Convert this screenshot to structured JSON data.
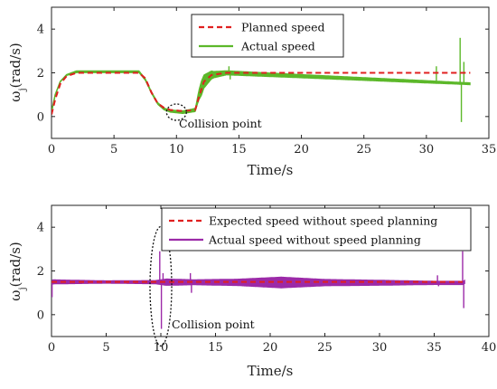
{
  "chart_data": [
    {
      "type": "line",
      "xlabel": "Time/s",
      "ylabel": "ω_j(rad/s)",
      "xlim": [
        0,
        35
      ],
      "ylim": [
        -1,
        5
      ],
      "xticks": [
        0,
        5,
        10,
        15,
        20,
        25,
        30,
        35
      ],
      "yticks": [
        0,
        2,
        4
      ],
      "legend_position": "top-center",
      "annotation": "Collision point",
      "annotation_at": [
        10,
        0.2
      ],
      "series": [
        {
          "name": "Planned speed",
          "style": "dashed",
          "color": "#e02020",
          "points": [
            [
              0,
              0.1
            ],
            [
              0.3,
              0.8
            ],
            [
              0.7,
              1.5
            ],
            [
              1.2,
              1.85
            ],
            [
              2,
              2
            ],
            [
              7,
              2
            ],
            [
              7.5,
              1.75
            ],
            [
              8,
              1.1
            ],
            [
              8.5,
              0.6
            ],
            [
              9,
              0.4
            ],
            [
              9.5,
              0.3
            ],
            [
              10.5,
              0.25
            ],
            [
              11.5,
              0.3
            ],
            [
              11.8,
              0.9
            ],
            [
              12.2,
              1.6
            ],
            [
              12.8,
              1.9
            ],
            [
              14,
              2
            ],
            [
              33.5,
              2
            ]
          ]
        },
        {
          "name": "Actual speed",
          "style": "solid",
          "color": "#5cb82a",
          "points": [
            [
              0,
              0.2
            ],
            [
              0.3,
              1.0
            ],
            [
              0.7,
              1.6
            ],
            [
              1.2,
              1.9
            ],
            [
              2,
              2.05
            ],
            [
              7,
              2.05
            ],
            [
              7.5,
              1.7
            ],
            [
              8,
              1.1
            ],
            [
              8.5,
              0.6
            ],
            [
              9,
              0.35
            ],
            [
              9.5,
              0.25
            ],
            [
              10.5,
              0.2
            ],
            [
              11.5,
              0.3
            ],
            [
              11.8,
              1.0
            ],
            [
              12.2,
              1.6
            ],
            [
              12.8,
              1.9
            ],
            [
              14,
              2
            ],
            [
              33.5,
              1.5
            ]
          ],
          "band": [
            [
              0,
              0.0
            ],
            [
              2,
              0.05
            ],
            [
              7,
              0.05
            ],
            [
              9,
              0.05
            ],
            [
              11.5,
              0.08
            ],
            [
              12,
              0.35
            ],
            [
              13,
              0.15
            ],
            [
              14,
              0.1
            ],
            [
              20,
              0.08
            ],
            [
              30,
              0.06
            ],
            [
              32.5,
              0.05
            ],
            [
              33,
              0.05
            ]
          ],
          "spikes": [
            [
              14.2,
              2.3
            ],
            [
              14.3,
              1.7
            ],
            [
              30.8,
              2.3
            ],
            [
              31,
              1.5
            ],
            [
              32.7,
              3.6
            ],
            [
              32.8,
              -0.25
            ],
            [
              33,
              2.5
            ],
            [
              33.2,
              1.5
            ]
          ]
        }
      ]
    },
    {
      "type": "line",
      "xlabel": "Time/s",
      "ylabel": "ω_j(rad/s)",
      "xlim": [
        0,
        40
      ],
      "ylim": [
        -1,
        5
      ],
      "xticks": [
        0,
        5,
        10,
        15,
        20,
        25,
        30,
        35,
        40
      ],
      "yticks": [
        0,
        2,
        4
      ],
      "legend_position": "top-right",
      "annotation": "Collision point",
      "annotation_at": [
        10,
        1.3
      ],
      "series": [
        {
          "name": "Expected speed without speed planning",
          "style": "dashed",
          "color": "#e02020",
          "points": [
            [
              0,
              1.5
            ],
            [
              37.6,
              1.5
            ]
          ]
        },
        {
          "name": "Actual speed without speed planning",
          "style": "solid",
          "color": "#9c2aa8",
          "points": [
            [
              0,
              1.4
            ],
            [
              0.1,
              1.5
            ],
            [
              37.6,
              1.45
            ],
            [
              37.8,
              1.5
            ]
          ],
          "band": [
            [
              0,
              0.1
            ],
            [
              5,
              0.06
            ],
            [
              9.5,
              0.08
            ],
            [
              10.5,
              0.15
            ],
            [
              13,
              0.12
            ],
            [
              17,
              0.15
            ],
            [
              21,
              0.25
            ],
            [
              25,
              0.15
            ],
            [
              30,
              0.12
            ],
            [
              35,
              0.08
            ],
            [
              37.6,
              0.08
            ]
          ],
          "spikes": [
            [
              0.05,
              0.8
            ],
            [
              9.9,
              2.9
            ],
            [
              10.05,
              -0.65
            ],
            [
              10.2,
              1.9
            ],
            [
              12.7,
              1.9
            ],
            [
              12.8,
              1.0
            ],
            [
              35.3,
              1.8
            ],
            [
              35.4,
              1.3
            ],
            [
              37.6,
              2.9
            ],
            [
              37.7,
              0.3
            ]
          ]
        }
      ]
    }
  ]
}
